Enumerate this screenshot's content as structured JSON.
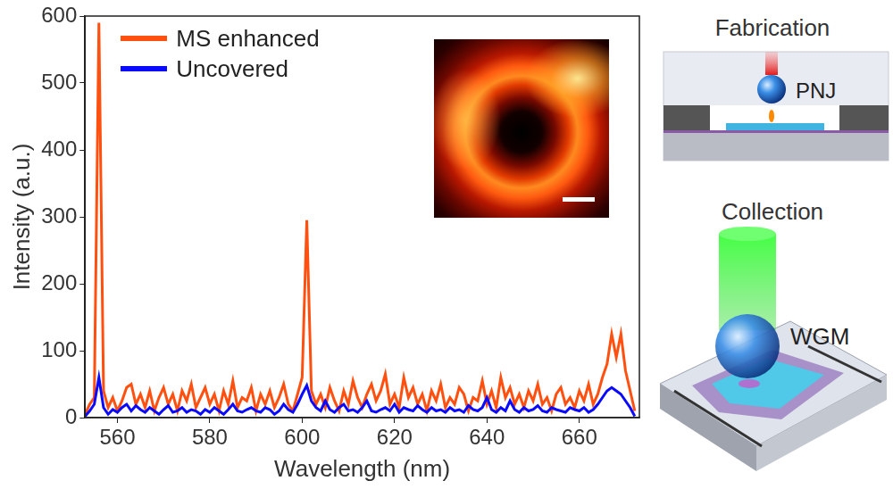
{
  "chart_data": {
    "type": "line",
    "x_label": "Wavelength (nm)",
    "y_label": "Intensity (a.u.)",
    "x": [
      553,
      554,
      555,
      556,
      557,
      558,
      559,
      560,
      561,
      562,
      563,
      564,
      565,
      566,
      567,
      568,
      569,
      570,
      571,
      572,
      573,
      574,
      575,
      576,
      577,
      578,
      579,
      580,
      581,
      582,
      583,
      584,
      585,
      586,
      587,
      588,
      589,
      590,
      591,
      592,
      593,
      594,
      595,
      596,
      597,
      598,
      599,
      600,
      601,
      602,
      603,
      604,
      605,
      606,
      607,
      608,
      609,
      610,
      611,
      612,
      613,
      614,
      615,
      616,
      617,
      618,
      619,
      620,
      621,
      622,
      623,
      624,
      625,
      626,
      627,
      628,
      629,
      630,
      631,
      632,
      633,
      634,
      635,
      636,
      637,
      638,
      639,
      640,
      641,
      642,
      643,
      644,
      645,
      646,
      647,
      648,
      649,
      650,
      651,
      652,
      653,
      654,
      655,
      656,
      657,
      658,
      659,
      660,
      661,
      662,
      663,
      664,
      665,
      666,
      667,
      668,
      669,
      670,
      671,
      672
    ],
    "series": [
      {
        "name": "MS enhanced",
        "color": "#ff5010",
        "values": [
          5,
          20,
          30,
          590,
          40,
          15,
          30,
          10,
          25,
          45,
          50,
          20,
          35,
          15,
          40,
          10,
          30,
          45,
          20,
          35,
          10,
          40,
          25,
          50,
          15,
          30,
          45,
          20,
          35,
          10,
          40,
          20,
          55,
          15,
          30,
          25,
          45,
          10,
          35,
          20,
          40,
          15,
          30,
          50,
          20,
          10,
          35,
          60,
          295,
          40,
          20,
          35,
          15,
          45,
          25,
          10,
          40,
          20,
          55,
          30,
          15,
          35,
          50,
          25,
          40,
          65,
          20,
          35,
          15,
          60,
          30,
          45,
          20,
          35,
          10,
          40,
          25,
          50,
          15,
          30,
          20,
          45,
          35,
          10,
          30,
          25,
          55,
          20,
          40,
          15,
          60,
          30,
          45,
          20,
          35,
          15,
          40,
          25,
          50,
          20,
          30,
          10,
          35,
          45,
          20,
          30,
          15,
          40,
          25,
          50,
          20,
          35,
          60,
          80,
          125,
          90,
          125,
          70,
          40,
          10
        ]
      },
      {
        "name": "Uncovered",
        "color": "#0a0aff",
        "values": [
          2,
          10,
          20,
          60,
          15,
          5,
          12,
          8,
          15,
          20,
          10,
          18,
          12,
          8,
          15,
          10,
          5,
          12,
          18,
          8,
          10,
          15,
          8,
          12,
          10,
          5,
          12,
          8,
          15,
          10,
          5,
          12,
          20,
          10,
          8,
          12,
          15,
          10,
          8,
          15,
          12,
          5,
          10,
          20,
          12,
          8,
          20,
          35,
          48,
          25,
          15,
          10,
          25,
          12,
          8,
          15,
          20,
          10,
          12,
          8,
          15,
          25,
          10,
          8,
          12,
          15,
          10,
          20,
          8,
          15,
          12,
          10,
          18,
          12,
          8,
          15,
          10,
          12,
          8,
          15,
          10,
          12,
          8,
          18,
          12,
          10,
          15,
          30,
          12,
          8,
          15,
          10,
          25,
          12,
          8,
          15,
          10,
          12,
          18,
          10,
          8,
          15,
          12,
          10,
          8,
          15,
          12,
          10,
          15,
          8,
          12,
          20,
          30,
          40,
          45,
          40,
          35,
          25,
          15,
          2
        ]
      }
    ],
    "xlim": [
      553,
      673
    ],
    "xticks": [
      560,
      580,
      600,
      620,
      640,
      660
    ],
    "ylim": [
      0,
      600
    ],
    "yticks": [
      0,
      100,
      200,
      300,
      400,
      500,
      600
    ],
    "grid": false,
    "legend": "upper left"
  },
  "diagram": {
    "fabrication": {
      "title": "Fabrication",
      "label": "PNJ"
    },
    "collection": {
      "title": "Collection",
      "label": "WGM"
    }
  }
}
